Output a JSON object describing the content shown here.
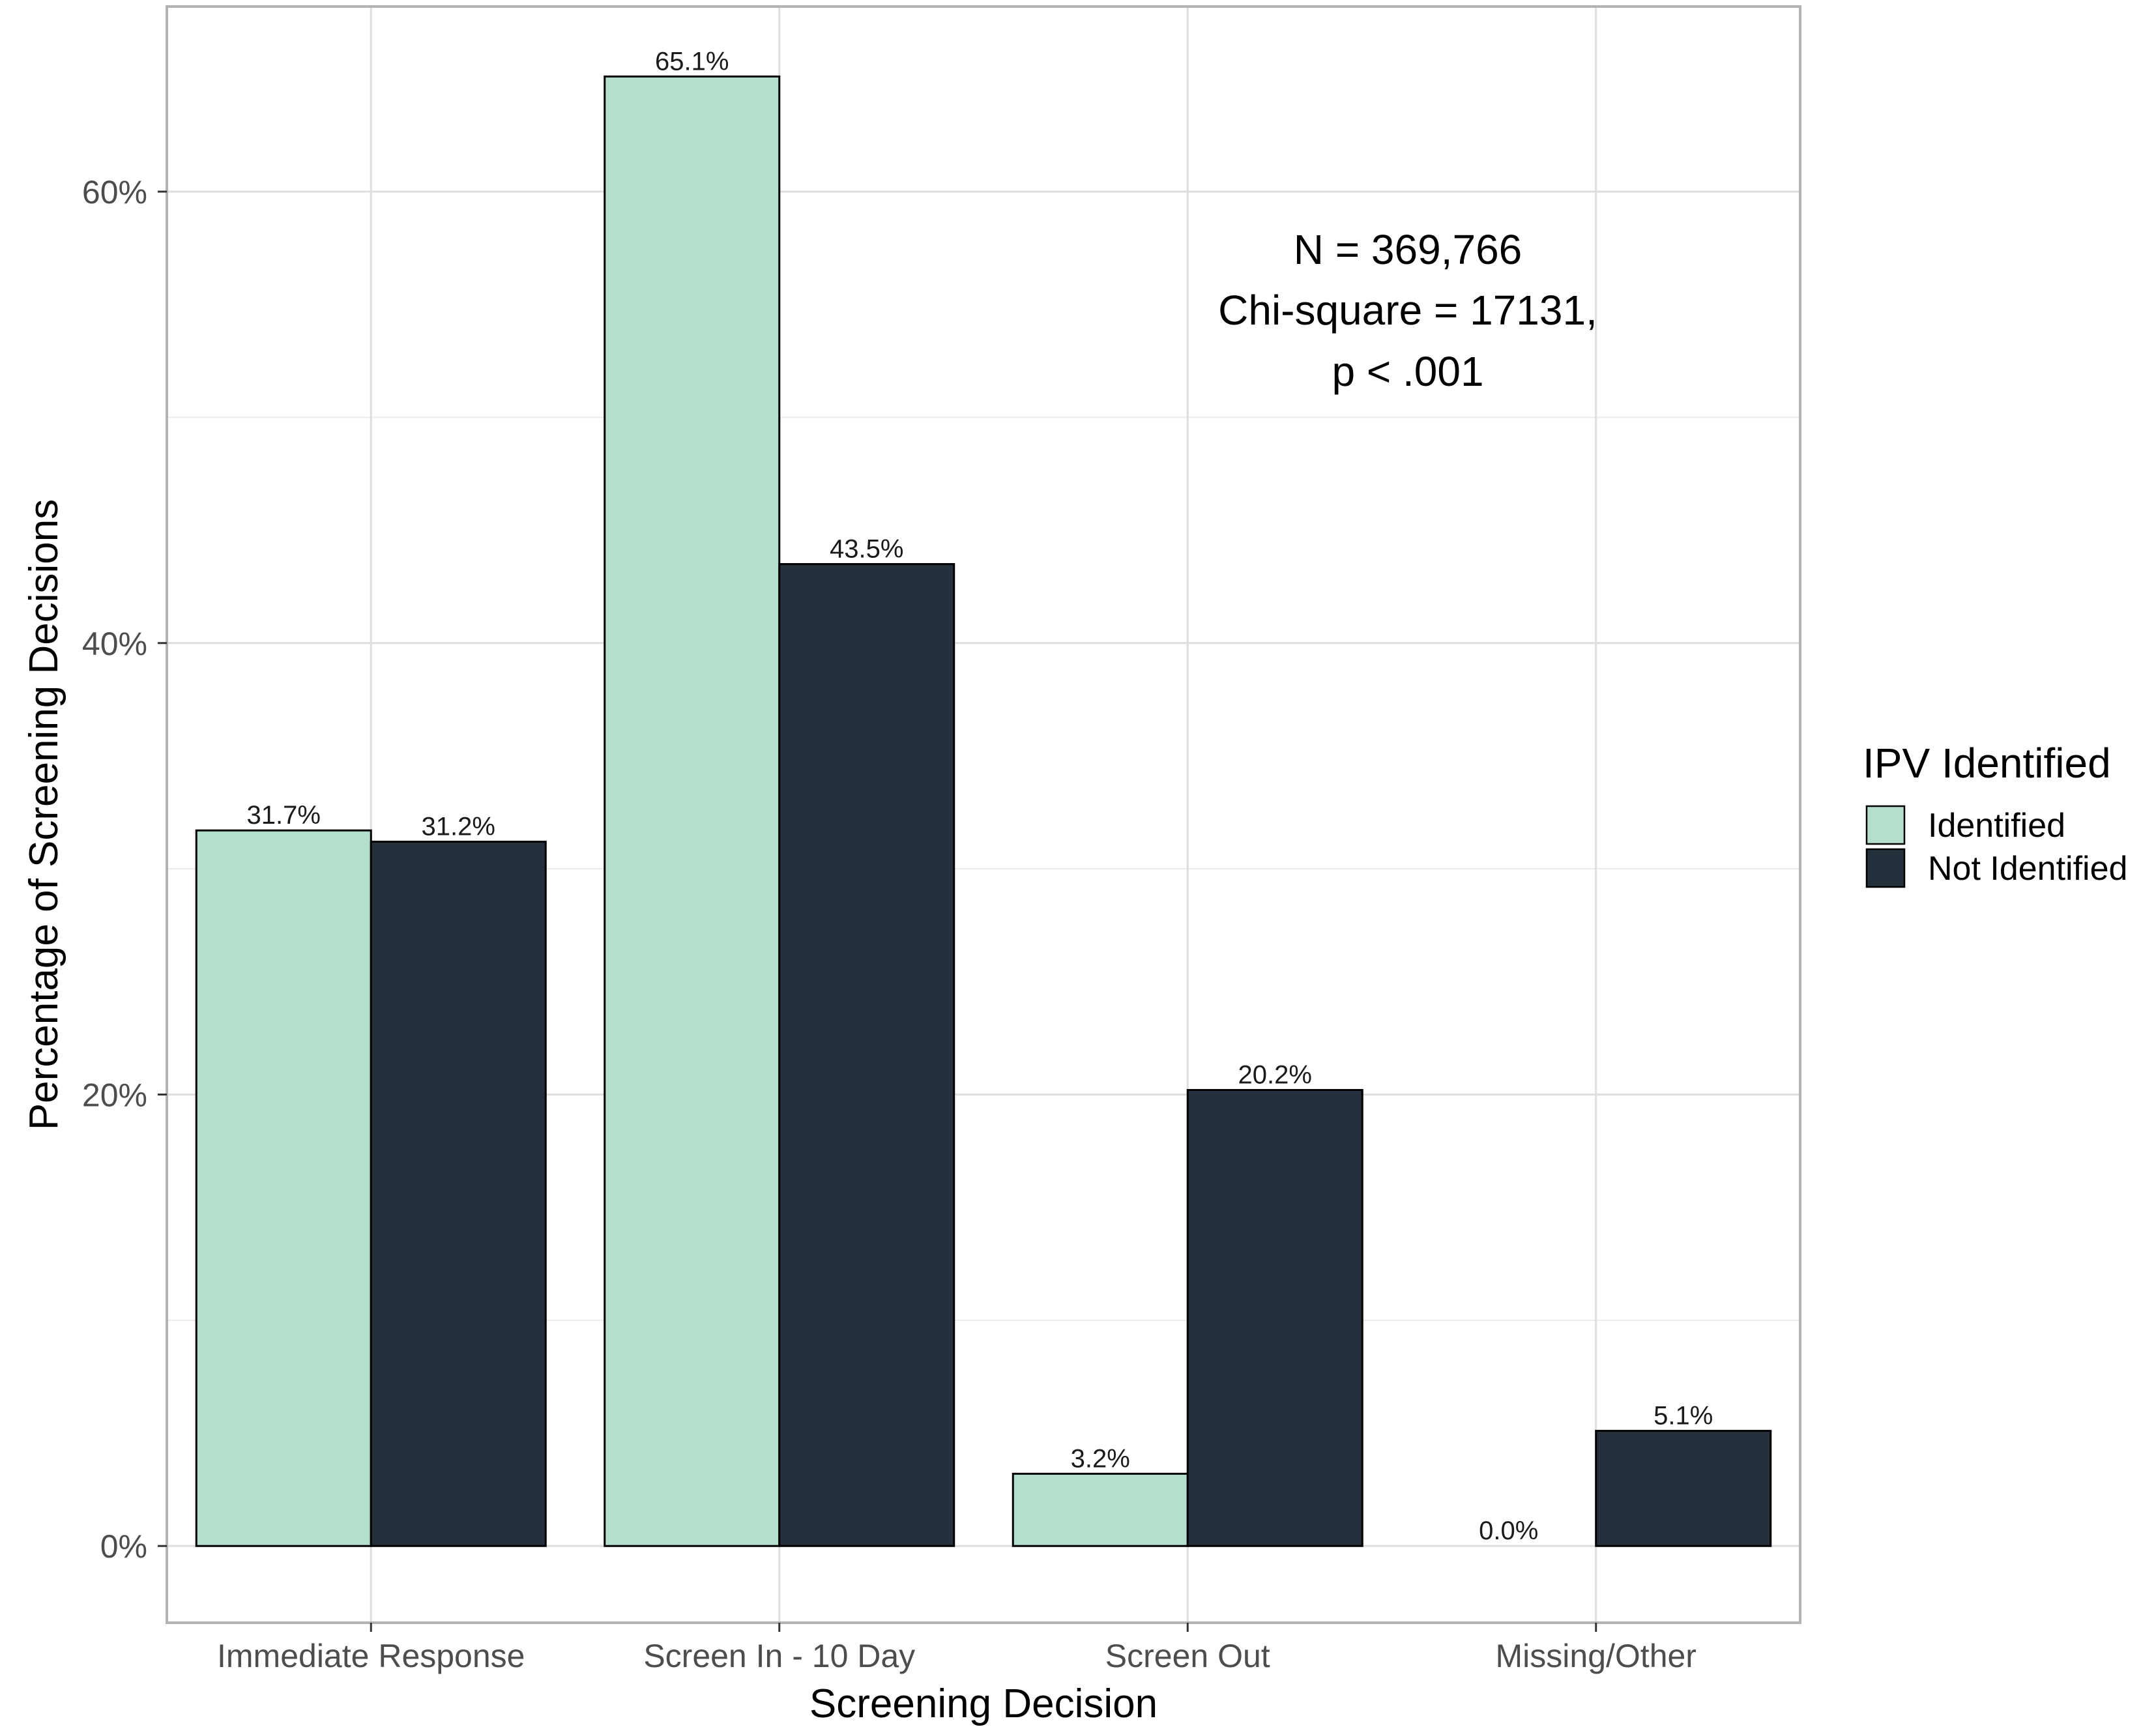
{
  "chart_data": {
    "type": "bar",
    "categories": [
      "Immediate Response",
      "Screen In - 10 Day",
      "Screen Out",
      "Missing/Other"
    ],
    "series": [
      {
        "name": "Identified",
        "color": "#b3dfcc",
        "values": [
          31.7,
          65.1,
          3.2,
          0.0
        ],
        "labels": [
          "31.7%",
          "65.1%",
          "3.2%",
          "0.0%"
        ]
      },
      {
        "name": "Not Identified",
        "color": "#24313c",
        "values": [
          31.2,
          43.5,
          20.2,
          5.1
        ],
        "labels": [
          "31.2%",
          "43.5%",
          "20.2%",
          "5.1%"
        ]
      }
    ],
    "xlabel": "Screening Decision",
    "ylabel": "Percentage of Screening Decisions",
    "ylim": [
      -3.4,
      68.2
    ],
    "yticks": [
      0,
      20,
      40,
      60
    ],
    "ytick_labels": [
      "0%",
      "20%",
      "40%",
      "60%"
    ],
    "grid": true,
    "legend": {
      "title": "IPV Identified",
      "placement": "right",
      "entries": [
        "Identified",
        "Not Identified"
      ]
    },
    "annotation": [
      "N = 369,766",
      "Chi-square = 17131,",
      "p < .001"
    ]
  }
}
